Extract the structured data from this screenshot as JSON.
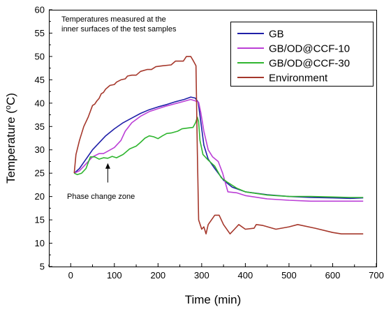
{
  "chart_data": {
    "type": "line",
    "title": "",
    "xlabel": "Time (min)",
    "ylabel_parts": [
      "Temperature (",
      "o",
      "C)"
    ],
    "xlim": [
      -50,
      700
    ],
    "ylim": [
      5,
      60
    ],
    "xticks": [
      0,
      100,
      200,
      300,
      400,
      500,
      600,
      700
    ],
    "yticks": [
      5,
      10,
      15,
      20,
      25,
      30,
      35,
      40,
      45,
      50,
      55,
      60
    ],
    "grid": false,
    "legend_position": "top-right",
    "annotations": {
      "top_note_line1": "Temperatures measured at the",
      "top_note_line2": "inner surfaces of the test samples",
      "phase_label": "Phase change zone",
      "arrow_from": [
        85,
        23
      ],
      "arrow_to": [
        85,
        27
      ]
    },
    "series": [
      {
        "name": "GB",
        "color": "#1f1fa8",
        "points": [
          [
            8,
            25
          ],
          [
            20,
            26
          ],
          [
            35,
            28
          ],
          [
            50,
            30
          ],
          [
            65,
            31.5
          ],
          [
            80,
            33
          ],
          [
            100,
            34.5
          ],
          [
            120,
            35.8
          ],
          [
            140,
            36.8
          ],
          [
            160,
            37.8
          ],
          [
            180,
            38.6
          ],
          [
            200,
            39.2
          ],
          [
            220,
            39.7
          ],
          [
            240,
            40.3
          ],
          [
            260,
            40.8
          ],
          [
            275,
            41.3
          ],
          [
            285,
            41.1
          ],
          [
            292,
            40.2
          ],
          [
            298,
            36
          ],
          [
            305,
            31
          ],
          [
            315,
            28
          ],
          [
            330,
            26
          ],
          [
            350,
            23.5
          ],
          [
            370,
            22
          ],
          [
            400,
            21
          ],
          [
            450,
            20.4
          ],
          [
            500,
            20
          ],
          [
            550,
            19.8
          ],
          [
            600,
            19.7
          ],
          [
            640,
            19.6
          ],
          [
            670,
            19.7
          ]
        ]
      },
      {
        "name": "GB/OD@CCF-10",
        "color": "#bb3fd6",
        "points": [
          [
            8,
            25
          ],
          [
            20,
            25.5
          ],
          [
            35,
            27
          ],
          [
            50,
            28.5
          ],
          [
            65,
            29.2
          ],
          [
            75,
            29.2
          ],
          [
            85,
            29.7
          ],
          [
            100,
            30.5
          ],
          [
            115,
            32
          ],
          [
            125,
            34
          ],
          [
            140,
            35.8
          ],
          [
            160,
            37.2
          ],
          [
            180,
            38.2
          ],
          [
            200,
            38.8
          ],
          [
            220,
            39.4
          ],
          [
            240,
            39.9
          ],
          [
            260,
            40.4
          ],
          [
            275,
            40.8
          ],
          [
            285,
            40.5
          ],
          [
            293,
            40.2
          ],
          [
            298,
            38
          ],
          [
            305,
            34
          ],
          [
            315,
            30
          ],
          [
            325,
            28.5
          ],
          [
            338,
            27.5
          ],
          [
            348,
            25
          ],
          [
            360,
            21
          ],
          [
            380,
            20.8
          ],
          [
            400,
            20.2
          ],
          [
            450,
            19.5
          ],
          [
            500,
            19.2
          ],
          [
            550,
            19
          ],
          [
            600,
            19
          ],
          [
            640,
            19
          ],
          [
            670,
            19
          ]
        ]
      },
      {
        "name": "GB/OD@CCF-30",
        "color": "#2fb52f",
        "points": [
          [
            8,
            25
          ],
          [
            15,
            24.7
          ],
          [
            25,
            25
          ],
          [
            35,
            26
          ],
          [
            45,
            28.5
          ],
          [
            55,
            28.5
          ],
          [
            65,
            28
          ],
          [
            75,
            28.3
          ],
          [
            85,
            28.2
          ],
          [
            95,
            28.6
          ],
          [
            105,
            28.3
          ],
          [
            120,
            29
          ],
          [
            135,
            30.2
          ],
          [
            150,
            30.8
          ],
          [
            160,
            31.6
          ],
          [
            170,
            32.5
          ],
          [
            180,
            33
          ],
          [
            190,
            32.8
          ],
          [
            200,
            32.4
          ],
          [
            210,
            33
          ],
          [
            220,
            33.5
          ],
          [
            230,
            33.6
          ],
          [
            245,
            34
          ],
          [
            255,
            34.5
          ],
          [
            270,
            34.7
          ],
          [
            280,
            34.8
          ],
          [
            286,
            35.8
          ],
          [
            290,
            37
          ],
          [
            293,
            36
          ],
          [
            296,
            32
          ],
          [
            303,
            29
          ],
          [
            315,
            27.8
          ],
          [
            330,
            26.5
          ],
          [
            345,
            24
          ],
          [
            360,
            23
          ],
          [
            380,
            21.8
          ],
          [
            400,
            21
          ],
          [
            450,
            20.3
          ],
          [
            500,
            20
          ],
          [
            550,
            20
          ],
          [
            600,
            19.9
          ],
          [
            640,
            19.8
          ],
          [
            670,
            19.8
          ]
        ]
      },
      {
        "name": "Environment",
        "color": "#a5372b",
        "points": [
          [
            8,
            25
          ],
          [
            12,
            29
          ],
          [
            20,
            32
          ],
          [
            30,
            35
          ],
          [
            40,
            37
          ],
          [
            50,
            39.5
          ],
          [
            55,
            39.8
          ],
          [
            60,
            40.5
          ],
          [
            65,
            41
          ],
          [
            70,
            42
          ],
          [
            75,
            42.3
          ],
          [
            80,
            43
          ],
          [
            90,
            43.8
          ],
          [
            100,
            44
          ],
          [
            105,
            44.5
          ],
          [
            115,
            45
          ],
          [
            125,
            45.2
          ],
          [
            130,
            45.8
          ],
          [
            140,
            46
          ],
          [
            150,
            46
          ],
          [
            160,
            46.8
          ],
          [
            175,
            47.2
          ],
          [
            185,
            47.2
          ],
          [
            195,
            47.8
          ],
          [
            210,
            48
          ],
          [
            230,
            48.2
          ],
          [
            240,
            49
          ],
          [
            258,
            49
          ],
          [
            265,
            50
          ],
          [
            275,
            50
          ],
          [
            280,
            49.2
          ],
          [
            287,
            48
          ],
          [
            290,
            30
          ],
          [
            293,
            15
          ],
          [
            300,
            13
          ],
          [
            305,
            13.5
          ],
          [
            310,
            12
          ],
          [
            315,
            14
          ],
          [
            330,
            16
          ],
          [
            340,
            16
          ],
          [
            350,
            14
          ],
          [
            365,
            12
          ],
          [
            375,
            13
          ],
          [
            385,
            14
          ],
          [
            400,
            13
          ],
          [
            420,
            13.2
          ],
          [
            425,
            14
          ],
          [
            440,
            13.8
          ],
          [
            470,
            13
          ],
          [
            500,
            13.5
          ],
          [
            520,
            14
          ],
          [
            560,
            13.2
          ],
          [
            600,
            12.3
          ],
          [
            620,
            12
          ],
          [
            650,
            12
          ],
          [
            670,
            12
          ]
        ]
      }
    ]
  }
}
